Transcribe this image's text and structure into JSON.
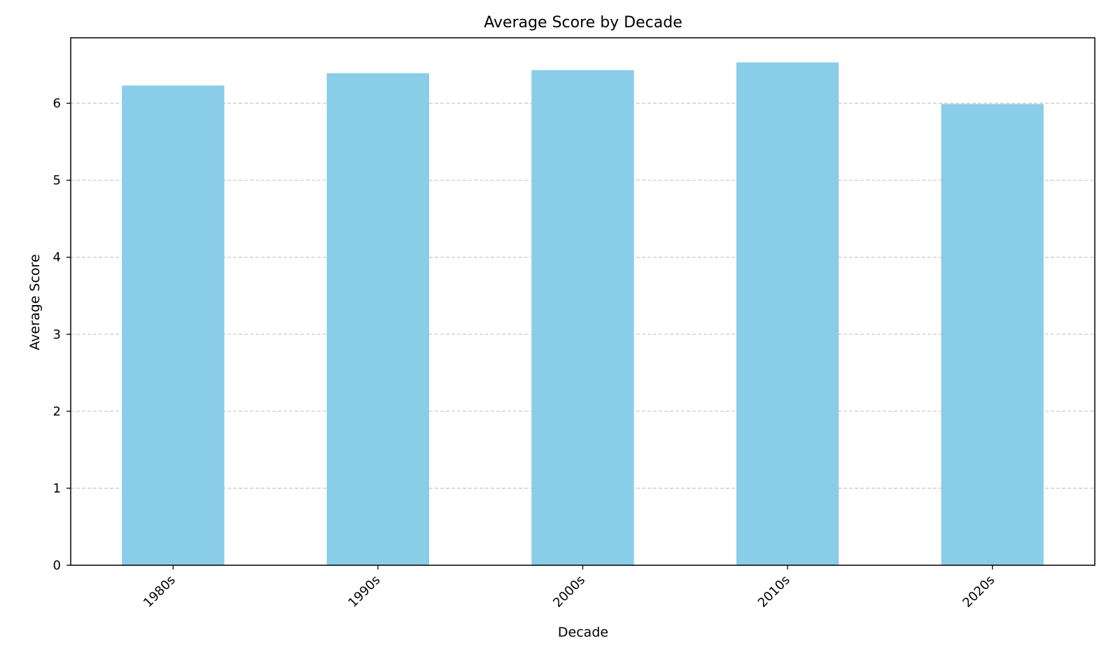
{
  "chart_data": {
    "type": "bar",
    "title": "Average Score by Decade",
    "xlabel": "Decade",
    "ylabel": "Average Score",
    "categories": [
      "1980s",
      "1990s",
      "2000s",
      "2010s",
      "2020s"
    ],
    "values": [
      6.23,
      6.39,
      6.43,
      6.53,
      5.99
    ],
    "ylim": [
      0,
      6.85
    ],
    "yticks": [
      0,
      1,
      2,
      3,
      4,
      5,
      6
    ],
    "ytick_labels": [
      "0",
      "1",
      "2",
      "3",
      "4",
      "5",
      "6"
    ],
    "grid": {
      "axis": "y",
      "style": "dashed",
      "color": "#cccccc"
    },
    "bar_color": "#89CDE8",
    "xtick_rotation_deg": 45,
    "legend": "none"
  }
}
